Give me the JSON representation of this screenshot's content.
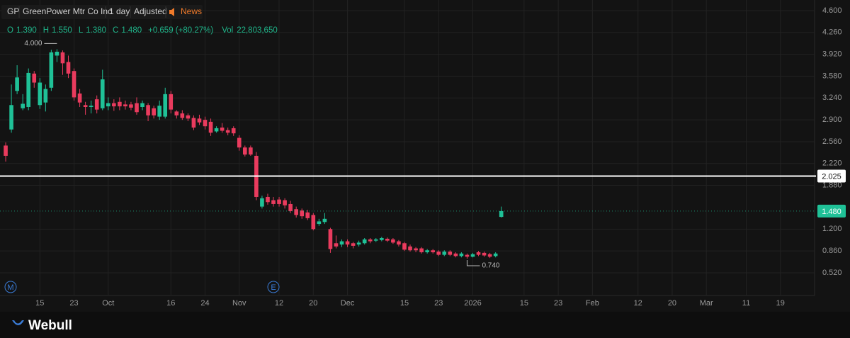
{
  "header": {
    "symbol": "GP",
    "name": "GreenPower Mtr Co Inc",
    "interval": "1 day",
    "adjust": "Adjusted",
    "news": "News",
    "ohlc": [
      {
        "key": "O",
        "value": "1.390"
      },
      {
        "key": "H",
        "value": "1.550"
      },
      {
        "key": "L",
        "value": "1.380"
      },
      {
        "key": "C",
        "value": "1.480"
      }
    ],
    "change": "+0.659 (+80.27%)",
    "volume_key": "Vol",
    "volume": "22,803,650"
  },
  "logo": "Webull",
  "events": [
    {
      "label": "M"
    },
    {
      "label": "E"
    }
  ],
  "chart_data": {
    "type": "candlestick",
    "up_color": "#1fc197",
    "down_color": "#ea3b5e",
    "grid": true,
    "open": [
      2.5,
      2.75,
      3.35,
      3.08,
      3.1,
      3.62,
      3.13,
      3.17,
      3.4,
      3.9,
      3.95,
      3.8,
      3.66,
      3.31,
      3.13,
      3.1,
      3.22,
      3.08,
      3.11,
      3.16,
      3.18,
      3.14,
      3.14,
      3.16,
      3.1,
      3.13,
      3.08,
      2.95,
      2.95,
      3.3,
      3.03,
      3.0,
      2.97,
      2.93,
      2.92,
      2.9,
      2.87,
      2.72,
      2.78,
      2.74,
      2.77,
      2.62,
      2.47,
      2.47,
      2.34,
      1.55,
      1.7,
      1.65,
      1.66,
      1.65,
      1.59,
      1.51,
      1.49,
      1.46,
      1.42,
      1.28,
      1.31,
      1.2,
      0.98,
      0.96,
      1.01,
      0.98,
      0.96,
      0.98,
      1.04,
      1.02,
      1.03,
      1.05,
      1.04,
      1.01,
      0.98,
      0.93,
      0.9,
      0.9,
      0.84,
      0.87,
      0.85,
      0.8,
      0.85,
      0.82,
      0.78,
      0.8,
      0.77,
      0.84,
      0.83,
      0.81,
      0.78,
      1.39
    ],
    "high": [
      2.55,
      3.45,
      3.75,
      3.3,
      3.7,
      3.66,
      3.55,
      3.45,
      3.99,
      4.0,
      3.98,
      3.9,
      3.7,
      3.38,
      3.18,
      3.2,
      3.28,
      3.68,
      3.25,
      3.22,
      3.25,
      3.2,
      3.18,
      3.25,
      3.2,
      3.16,
      3.12,
      3.2,
      3.4,
      3.35,
      3.05,
      3.05,
      3.0,
      2.97,
      2.98,
      2.95,
      2.92,
      2.8,
      2.85,
      2.78,
      2.8,
      2.66,
      2.5,
      2.5,
      2.4,
      1.72,
      1.75,
      1.7,
      1.7,
      1.68,
      1.64,
      1.55,
      1.52,
      1.5,
      1.45,
      1.36,
      1.45,
      1.22,
      1.1,
      1.04,
      1.04,
      1.0,
      1.02,
      1.06,
      1.06,
      1.06,
      1.08,
      1.07,
      1.06,
      1.03,
      1.0,
      0.96,
      0.92,
      0.92,
      0.89,
      0.89,
      0.87,
      0.87,
      0.87,
      0.84,
      0.84,
      0.82,
      0.83,
      0.86,
      0.85,
      0.83,
      0.84,
      1.55
    ],
    "low": [
      2.25,
      2.7,
      3.3,
      3.05,
      3.05,
      3.4,
      3.07,
      3.03,
      3.35,
      3.8,
      3.6,
      3.55,
      3.2,
      3.1,
      2.98,
      3.0,
      3.0,
      3.05,
      3.05,
      3.04,
      3.05,
      3.06,
      3.05,
      2.98,
      3.05,
      2.88,
      2.92,
      2.9,
      2.92,
      3.0,
      2.92,
      2.9,
      2.88,
      2.74,
      2.82,
      2.75,
      2.65,
      2.7,
      2.7,
      2.66,
      2.65,
      2.42,
      2.33,
      2.34,
      1.65,
      1.52,
      1.58,
      1.55,
      1.55,
      1.52,
      1.45,
      1.38,
      1.36,
      1.34,
      1.18,
      1.25,
      1.28,
      0.83,
      0.9,
      0.92,
      0.92,
      0.9,
      0.93,
      0.96,
      0.98,
      1.0,
      1.01,
      1.0,
      0.97,
      0.93,
      0.86,
      0.85,
      0.84,
      0.82,
      0.82,
      0.82,
      0.78,
      0.78,
      0.78,
      0.76,
      0.76,
      0.74,
      0.76,
      0.78,
      0.77,
      0.75,
      0.76,
      1.38
    ],
    "close": [
      2.34,
      3.13,
      3.56,
      3.15,
      3.63,
      3.48,
      3.48,
      3.38,
      3.95,
      3.96,
      3.78,
      3.62,
      3.25,
      3.17,
      3.1,
      3.12,
      3.06,
      3.53,
      3.16,
      3.11,
      3.11,
      3.11,
      3.09,
      3.02,
      3.16,
      2.97,
      2.97,
      3.12,
      3.3,
      3.06,
      2.97,
      2.93,
      2.92,
      2.78,
      2.86,
      2.8,
      2.7,
      2.77,
      2.73,
      2.7,
      2.69,
      2.47,
      2.36,
      2.36,
      1.7,
      1.68,
      1.62,
      1.59,
      1.59,
      1.57,
      1.48,
      1.42,
      1.4,
      1.37,
      1.2,
      1.32,
      1.36,
      0.89,
      0.93,
      1.01,
      0.96,
      0.94,
      0.99,
      1.04,
      1.01,
      1.04,
      1.06,
      1.02,
      0.99,
      0.96,
      0.88,
      0.87,
      0.87,
      0.84,
      0.87,
      0.84,
      0.8,
      0.85,
      0.8,
      0.78,
      0.82,
      0.77,
      0.81,
      0.8,
      0.79,
      0.77,
      0.82,
      1.48
    ],
    "xlim": [
      -1,
      142
    ],
    "xticks": [
      {
        "value": 6,
        "label": "15"
      },
      {
        "value": 12,
        "label": "23"
      },
      {
        "value": 18,
        "label": "Oct"
      },
      {
        "value": 29,
        "label": "16"
      },
      {
        "value": 35,
        "label": "24"
      },
      {
        "value": 41,
        "label": "Nov"
      },
      {
        "value": 48,
        "label": "12"
      },
      {
        "value": 54,
        "label": "20"
      },
      {
        "value": 60,
        "label": "Dec"
      },
      {
        "value": 70,
        "label": "15"
      },
      {
        "value": 76,
        "label": "23"
      },
      {
        "value": 82,
        "label": "2026"
      },
      {
        "value": 91,
        "label": "15"
      },
      {
        "value": 97,
        "label": "23"
      },
      {
        "value": 103,
        "label": "Feb"
      },
      {
        "value": 111,
        "label": "12"
      },
      {
        "value": 117,
        "label": "20"
      },
      {
        "value": 123,
        "label": "Mar"
      },
      {
        "value": 130,
        "label": "11"
      },
      {
        "value": 136,
        "label": "19"
      }
    ],
    "ylim": [
      0.167,
      4.765
    ],
    "yticks": [
      {
        "value": 4.6,
        "label": "4.600"
      },
      {
        "value": 4.26,
        "label": "4.260"
      },
      {
        "value": 3.92,
        "label": "3.920"
      },
      {
        "value": 3.58,
        "label": "3.580"
      },
      {
        "value": 3.24,
        "label": "3.240"
      },
      {
        "value": 2.9,
        "label": "2.900"
      },
      {
        "value": 2.56,
        "label": "2.560"
      },
      {
        "value": 2.22,
        "label": "2.220"
      },
      {
        "value": 1.88,
        "label": "1.880"
      },
      {
        "value": 1.2,
        "label": "1.200"
      },
      {
        "value": 0.86,
        "label": "0.860"
      },
      {
        "value": 0.52,
        "label": "0.520"
      }
    ],
    "price_line": {
      "value": 2.025,
      "label": "2.025",
      "color": "#ffffff"
    },
    "last_price": {
      "value": 1.48,
      "label": "1.480",
      "color": "#1fc197"
    },
    "high_label": {
      "value": 4.0,
      "label": "4.000"
    },
    "low_label": {
      "value": 0.74,
      "label": "0.740"
    }
  }
}
